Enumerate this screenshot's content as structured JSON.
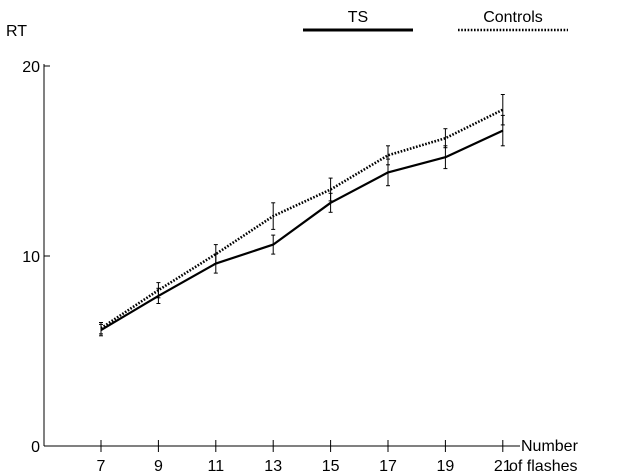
{
  "chart_data": {
    "type": "line",
    "ylabel": "RT",
    "xlabel": [
      "Number",
      "of flashes"
    ],
    "categories": [
      7,
      9,
      11,
      13,
      15,
      17,
      19,
      21
    ],
    "ylim": [
      0,
      20
    ],
    "yticks": [
      0,
      10,
      20
    ],
    "legend_position": "top",
    "series": [
      {
        "name": "TS",
        "style": "solid",
        "color": "#000000",
        "values": [
          6.1,
          7.9,
          9.6,
          10.6,
          12.8,
          14.4,
          15.2,
          16.6
        ],
        "error": [
          0.3,
          0.4,
          0.5,
          0.5,
          0.5,
          0.7,
          0.6,
          0.8
        ]
      },
      {
        "name": "Controls",
        "style": "dotted",
        "color": "#000000",
        "values": [
          6.2,
          8.2,
          10.1,
          12.1,
          13.5,
          15.3,
          16.2,
          17.7
        ],
        "error": [
          0.3,
          0.4,
          0.5,
          0.7,
          0.6,
          0.5,
          0.5,
          0.8
        ]
      }
    ]
  }
}
